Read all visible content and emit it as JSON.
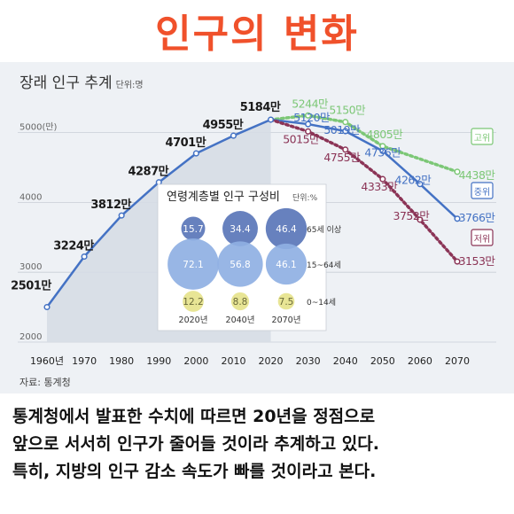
{
  "page": {
    "title": "인구의 변화"
  },
  "caption": [
    "통계청에서 발표한 수치에 따르면 20년을 정점으로",
    "앞으로 서서히 인구가 줄어들 것이라 추계하고 있다.",
    "특히, 지방의 인구 감소 속도가 빠를 것이라고 본다."
  ],
  "chart_data": [
    {
      "type": "line",
      "title": "장래 인구 추계",
      "unit": "단위:명",
      "source": "자료: 통계청",
      "x_ticks": [
        "1960년",
        "1970",
        "1980",
        "1990",
        "2000",
        "2010",
        "2020",
        "2030",
        "2040",
        "2050",
        "2060",
        "2070"
      ],
      "y_ticks": [
        {
          "value": 5000,
          "label": "5000(만)"
        },
        {
          "value": 4000,
          "label": "4000"
        },
        {
          "value": 3000,
          "label": "3000"
        },
        {
          "value": 2000,
          "label": "2000"
        }
      ],
      "xlim": [
        1960,
        2070
      ],
      "ylim": [
        2000,
        5400
      ],
      "colors": {
        "actual": "#4472c4",
        "high": "#7cc776",
        "medium": "#4472c4",
        "low": "#8b3456",
        "area": "#d6dde6"
      },
      "series": [
        {
          "key": "actual",
          "points": [
            {
              "x": 1960,
              "y": 2501,
              "label": "2501만"
            },
            {
              "x": 1970,
              "y": 3224,
              "label": "3224만"
            },
            {
              "x": 1980,
              "y": 3812,
              "label": "3812만"
            },
            {
              "x": 1990,
              "y": 4287,
              "label": "4287만"
            },
            {
              "x": 2000,
              "y": 4701,
              "label": "4701만"
            },
            {
              "x": 2010,
              "y": 4955,
              "label": "4955만"
            },
            {
              "x": 2020,
              "y": 5184,
              "label": "5184만"
            }
          ]
        },
        {
          "key": "high",
          "name": "고위",
          "points": [
            {
              "x": 2020,
              "y": 5184
            },
            {
              "x": 2030,
              "y": 5244,
              "label": "5244만"
            },
            {
              "x": 2040,
              "y": 5150,
              "label": "5150만"
            },
            {
              "x": 2050,
              "y": 4805,
              "label": "4805만"
            },
            {
              "x": 2070,
              "y": 4438,
              "label": "4438만"
            }
          ]
        },
        {
          "key": "medium",
          "name": "중위",
          "points": [
            {
              "x": 2020,
              "y": 5184
            },
            {
              "x": 2030,
              "y": 5120,
              "label": "5120만"
            },
            {
              "x": 2040,
              "y": 5019,
              "label": "5019만"
            },
            {
              "x": 2050,
              "y": 4736,
              "label": "4736만"
            },
            {
              "x": 2060,
              "y": 4262,
              "label": "4262만"
            },
            {
              "x": 2070,
              "y": 3766,
              "label": "3766만"
            }
          ]
        },
        {
          "key": "low",
          "name": "저위",
          "points": [
            {
              "x": 2020,
              "y": 5184
            },
            {
              "x": 2030,
              "y": 5015,
              "label": "5015만"
            },
            {
              "x": 2040,
              "y": 4755,
              "label": "4755만"
            },
            {
              "x": 2050,
              "y": 4333,
              "label": "4333만"
            },
            {
              "x": 2060,
              "y": 3752,
              "label": "3752만"
            },
            {
              "x": 2070,
              "y": 3153,
              "label": "3153만"
            }
          ]
        }
      ]
    },
    {
      "type": "bubble",
      "title": "연령계층별 인구 구성비",
      "unit": "단위:%",
      "columns": [
        "2020년",
        "2040년",
        "2070년"
      ],
      "rows": [
        {
          "label": "65세 이상",
          "values": [
            15.7,
            34.4,
            46.4
          ]
        },
        {
          "label": "15~64세",
          "values": [
            72.1,
            56.8,
            46.1
          ]
        },
        {
          "label": "0~14세",
          "values": [
            12.2,
            8.8,
            7.5
          ]
        }
      ],
      "colors": {
        "old": "#5a76b8",
        "work": "#8fb0e3",
        "young": "#e6e38c"
      }
    }
  ]
}
